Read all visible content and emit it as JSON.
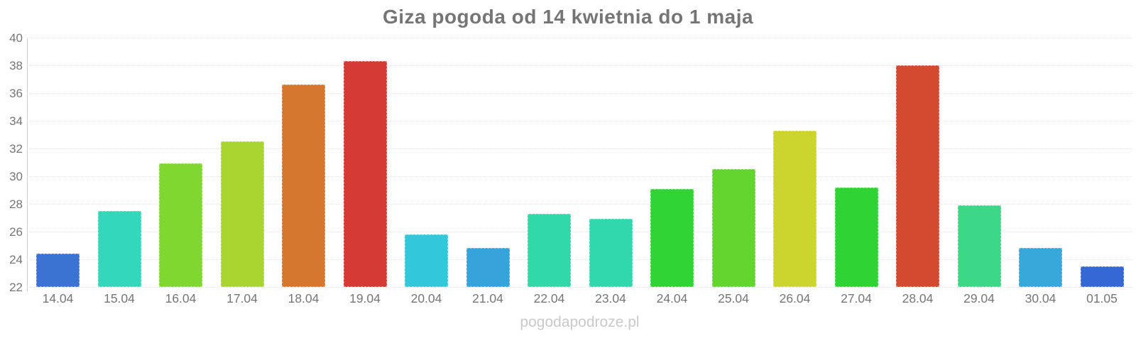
{
  "page": {
    "title": "Giza pogoda od 14 kwietnia do 1 maja",
    "watermark": "pogodapodroze.pl"
  },
  "chart_data": {
    "type": "bar",
    "title": "Giza pogoda od 14 kwietnia do 1 maja",
    "xlabel": "",
    "ylabel": "",
    "categories": [
      "14.04",
      "15.04",
      "16.04",
      "17.04",
      "18.04",
      "19.04",
      "20.04",
      "21.04",
      "22.04",
      "23.04",
      "24.04",
      "25.04",
      "26.04",
      "27.04",
      "28.04",
      "29.04",
      "30.04",
      "01.05"
    ],
    "values": [
      24.4,
      27.5,
      30.9,
      32.5,
      36.6,
      38.3,
      25.8,
      24.8,
      27.3,
      26.9,
      29.1,
      30.5,
      33.3,
      29.2,
      38.0,
      27.9,
      24.8,
      23.5
    ],
    "colors": [
      "#3a73d1",
      "#32d8b9",
      "#7fd730",
      "#aad530",
      "#d5772e",
      "#d53a34",
      "#31c8dc",
      "#36a4da",
      "#31d8a8",
      "#31d8ae",
      "#30d434",
      "#64d42e",
      "#ccd42e",
      "#2fd434",
      "#d44a30",
      "#3cd787",
      "#38a8da",
      "#3568d4"
    ],
    "ylim": [
      22,
      40
    ],
    "ytick_step": 2,
    "yticks": [
      22,
      24,
      26,
      28,
      30,
      32,
      34,
      36,
      38,
      40
    ],
    "grid": "horizontal-dotted",
    "legend": "none",
    "axis_colors": {
      "axis_line": "#cccccc",
      "gridline": "#e7e7e7",
      "tick_text": "#757575",
      "title_text": "#757575",
      "watermark_text": "#c9c9c9"
    }
  }
}
